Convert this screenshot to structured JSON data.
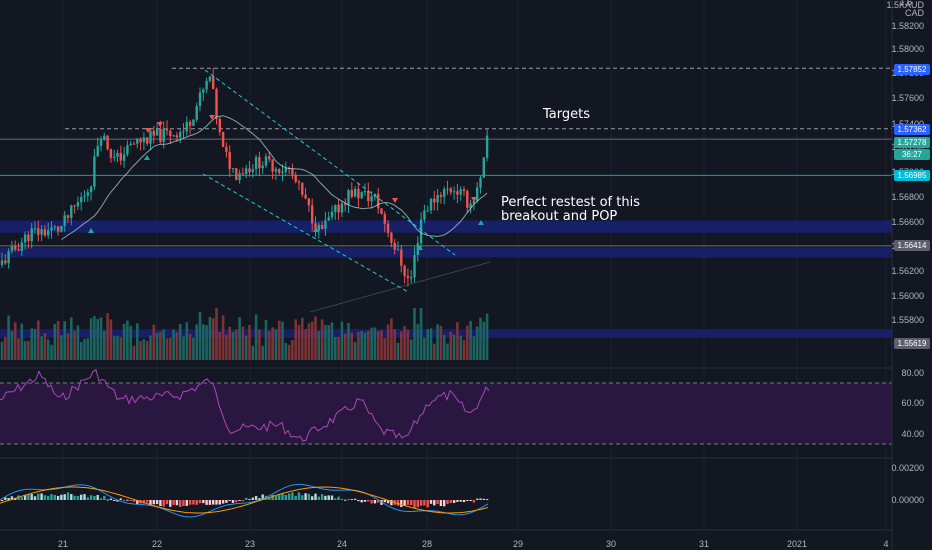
{
  "symbol_label": "1. 5KAUD / CAD",
  "currency_line1": "1.5KAUD",
  "currency_line2": "CAD",
  "chart_data": {
    "type": "candlestick",
    "price_axis": {
      "ticks": [
        "1.58200",
        "1.58000",
        "1.57800",
        "1.57600",
        "1.57400",
        "1.57200",
        "1.57000",
        "1.56800",
        "1.56600",
        "1.56400",
        "1.56200",
        "1.56000",
        "1.55800"
      ],
      "top_partial_tick": "1.5",
      "range": [
        1.5556,
        1.5835
      ]
    },
    "price_labels": [
      {
        "value": "1.57852",
        "color": "#2962ff"
      },
      {
        "value": "1.57362",
        "color": "#2962ff"
      },
      {
        "value": "1.57278",
        "color": "#26a69a"
      },
      {
        "value": "36:27",
        "color": "#26a69a"
      },
      {
        "value": "1.56985",
        "color": "#00bcd4"
      },
      {
        "value": "1.56414",
        "color": "#5d606b"
      },
      {
        "value": "1.55619",
        "color": "#5d606b"
      }
    ],
    "x_axis": {
      "labels": [
        "21",
        "22",
        "23",
        "24",
        "28",
        "29",
        "30",
        "31",
        "2021",
        "4"
      ]
    },
    "levels": [
      {
        "price": 1.57852,
        "style": "dashed",
        "color": "#b2b5be"
      },
      {
        "price": 1.57362,
        "style": "dashed",
        "color": "#b2b5be"
      },
      {
        "price": 1.57278,
        "style": "solid",
        "color": "#787b86"
      },
      {
        "price": 1.56985,
        "style": "solid",
        "color": "#00bcd4"
      },
      {
        "price": 1.56414,
        "style": "solid",
        "color": "#787b86"
      }
    ],
    "zones": [
      {
        "from": 1.5652,
        "to": 1.5662,
        "color": "#1a237e"
      },
      {
        "from": 1.5632,
        "to": 1.564,
        "color": "#1a237e"
      },
      {
        "from": 1.5567,
        "to": 1.5574,
        "color": "#1a237e"
      }
    ],
    "channel_lines": [
      {
        "from": [
          "22",
          1.5786
        ],
        "to": [
          "24",
          1.564
        ],
        "color": "#26c6da",
        "style": "dashed"
      },
      {
        "from": [
          "22",
          1.57
        ],
        "to": [
          "24",
          1.561
        ],
        "color": "#26c6da",
        "style": "dashed"
      }
    ],
    "annotations": [
      "Targets",
      "Perfect restest of this breakout and POP"
    ],
    "series": [
      {
        "name": "price",
        "color_up": "#26a69a",
        "color_down": "#ef5350"
      }
    ],
    "rsi": {
      "levels": [
        "80.00",
        "60.00",
        "40.00"
      ],
      "color": "#ab47bc",
      "band_color": "#2a1740"
    },
    "macd": {
      "levels": [
        "0.00200",
        "0.00000"
      ],
      "macd_color": "#2196f3",
      "signal_color": "#ff9800"
    }
  }
}
